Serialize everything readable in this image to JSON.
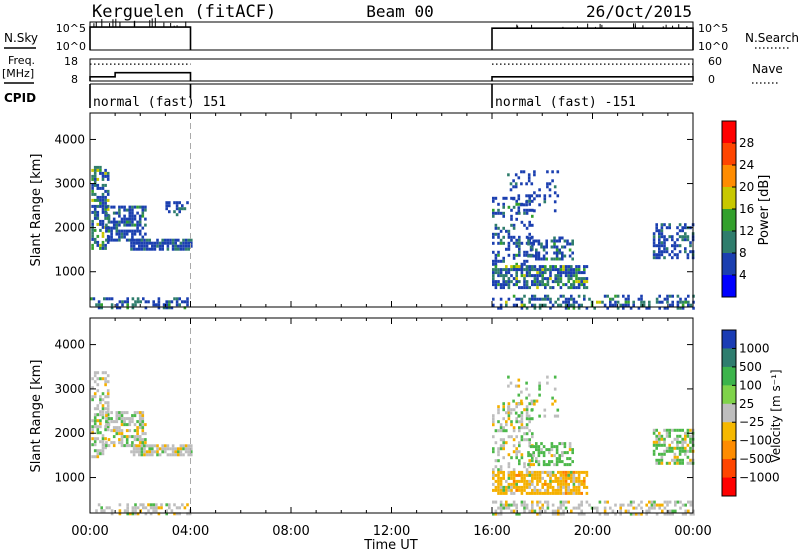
{
  "header": {
    "station": "Kerguelen (fitACF)",
    "beam": "Beam 00",
    "date": "26/Oct/2015"
  },
  "chart_data": [
    {
      "type": "line",
      "panel": "nsky-nsearch",
      "left_label": "N.Sky",
      "right_label": "N.Search",
      "left_ticks": [
        "10^5",
        "10^0"
      ],
      "right_ticks": [
        "10^5",
        "10^0"
      ],
      "series": [
        {
          "segments": [
            {
              "x_hours": [
                0.0,
                4.0
              ],
              "level": 0.82
            },
            {
              "x_hours": [
                16.0,
                24.0
              ],
              "level": 0.78
            }
          ]
        }
      ]
    },
    {
      "type": "line",
      "panel": "freq-nave",
      "left_label": "Freq.",
      "left_unit": "[MHz]",
      "right_label": "Nave",
      "left_ticks": [
        18,
        8
      ],
      "right_ticks": [
        60,
        0
      ],
      "series": [
        {
          "points": [
            [
              0.0,
              9.9
            ],
            [
              1.0,
              9.9
            ],
            [
              1.0,
              11.8
            ],
            [
              4.0,
              11.8
            ]
          ]
        },
        {
          "points": [
            [
              16.0,
              9.9
            ],
            [
              24.0,
              9.9
            ]
          ]
        }
      ],
      "nave_segments": [
        [
          0.0,
          4.0,
          46
        ],
        [
          16.0,
          24.0,
          46
        ]
      ]
    },
    {
      "type": "table",
      "panel": "cpid",
      "label": "CPID",
      "entries": [
        {
          "start_hour": 0.0,
          "end_hour": 4.0,
          "text": "normal (fast) 151"
        },
        {
          "start_hour": 16.0,
          "end_hour": 24.0,
          "text": "normal (fast) -151"
        }
      ]
    },
    {
      "type": "heatmap",
      "panel": "power",
      "ylabel": "Slant Range [km]",
      "xlabel": "",
      "x_ticks": [
        "00:00",
        "04:00",
        "08:00",
        "12:00",
        "16:00",
        "20:00",
        "00:00"
      ],
      "y_ticks": [
        1000,
        2000,
        3000,
        4000
      ],
      "ylim": [
        200,
        4600
      ],
      "xlim_hours": [
        0,
        24
      ],
      "colorbar": {
        "label": "Power [dB]",
        "ticks": [
          4,
          8,
          12,
          16,
          20,
          24,
          28
        ],
        "range": [
          0,
          32
        ],
        "colors": [
          "#0000ff",
          "#1b3fb0",
          "#2f7d6c",
          "#33a02c",
          "#c8c800",
          "#ff8c00",
          "#ff4500",
          "#ff0000"
        ]
      },
      "blobs": [
        {
          "t": [
            0.05,
            0.7
          ],
          "r": [
            1500,
            3400
          ],
          "density": 0.55,
          "mix": [
            0.55,
            0.3,
            0.1,
            0.05
          ]
        },
        {
          "t": [
            0.6,
            2.2
          ],
          "r": [
            1700,
            2500
          ],
          "density": 0.6,
          "mix": [
            0.7,
            0.25,
            0.05,
            0
          ]
        },
        {
          "t": [
            1.6,
            4.0
          ],
          "r": [
            1500,
            1750
          ],
          "density": 0.85,
          "mix": [
            0.8,
            0.2,
            0,
            0
          ]
        },
        {
          "t": [
            3.0,
            4.0
          ],
          "r": [
            2300,
            2600
          ],
          "density": 0.3,
          "mix": [
            0.7,
            0.3,
            0,
            0
          ]
        },
        {
          "t": [
            16.0,
            17.6
          ],
          "r": [
            1100,
            2700
          ],
          "density": 0.35,
          "mix": [
            0.75,
            0.2,
            0.05,
            0
          ]
        },
        {
          "t": [
            16.0,
            19.8
          ],
          "r": [
            650,
            1150
          ],
          "density": 0.75,
          "mix": [
            0.5,
            0.35,
            0.1,
            0.05
          ]
        },
        {
          "t": [
            17.4,
            19.2
          ],
          "r": [
            1300,
            1800
          ],
          "density": 0.55,
          "mix": [
            0.6,
            0.3,
            0.1,
            0
          ]
        },
        {
          "t": [
            16.6,
            18.6
          ],
          "r": [
            2400,
            3300
          ],
          "density": 0.18,
          "mix": [
            0.85,
            0.15,
            0,
            0
          ]
        },
        {
          "t": [
            22.4,
            24.0
          ],
          "r": [
            1300,
            2100
          ],
          "density": 0.55,
          "mix": [
            0.75,
            0.25,
            0,
            0
          ]
        },
        {
          "t": [
            0.0,
            4.0
          ],
          "r": [
            200,
            420
          ],
          "density": 0.35,
          "mix": [
            0.6,
            0.3,
            0.1,
            0
          ]
        },
        {
          "t": [
            16.0,
            24.0
          ],
          "r": [
            200,
            480
          ],
          "density": 0.4,
          "mix": [
            0.55,
            0.3,
            0.1,
            0.05
          ]
        }
      ]
    },
    {
      "type": "heatmap",
      "panel": "velocity",
      "ylabel": "Slant Range [km]",
      "xlabel": "Time UT",
      "x_ticks": [
        "00:00",
        "04:00",
        "08:00",
        "12:00",
        "16:00",
        "20:00",
        "00:00"
      ],
      "y_ticks": [
        1000,
        2000,
        3000,
        4000
      ],
      "ylim": [
        200,
        4600
      ],
      "xlim_hours": [
        0,
        24
      ],
      "colorbar": {
        "label": "Velocity [m s⁻¹]",
        "ticks": [
          "1000",
          "500",
          "100",
          "25",
          "−25",
          "−100",
          "−500",
          "−1000"
        ],
        "colors": [
          "#1a3cb4",
          "#2e7d6e",
          "#3cb44b",
          "#7fd34a",
          "#bebebe",
          "#f5b800",
          "#ff8c00",
          "#ff4500",
          "#ff0000"
        ]
      },
      "blobs": [
        {
          "t": [
            0.05,
            0.7
          ],
          "r": [
            1500,
            3400
          ],
          "density": 0.55,
          "mix": [
            0.6,
            0.25,
            0.15,
            0
          ]
        },
        {
          "t": [
            0.6,
            2.2
          ],
          "r": [
            1700,
            2500
          ],
          "density": 0.6,
          "mix": [
            0.55,
            0.25,
            0.2,
            0
          ]
        },
        {
          "t": [
            1.6,
            4.0
          ],
          "r": [
            1500,
            1750
          ],
          "density": 0.85,
          "mix": [
            0.75,
            0.1,
            0.15,
            0
          ]
        },
        {
          "t": [
            16.0,
            17.6
          ],
          "r": [
            1100,
            2700
          ],
          "density": 0.35,
          "mix": [
            0.5,
            0.35,
            0.15,
            0
          ]
        },
        {
          "t": [
            16.0,
            19.8
          ],
          "r": [
            650,
            1150
          ],
          "density": 0.75,
          "mix": [
            0.15,
            0.05,
            0.75,
            0.05
          ]
        },
        {
          "t": [
            17.4,
            19.2
          ],
          "r": [
            1300,
            1800
          ],
          "density": 0.55,
          "mix": [
            0.2,
            0.75,
            0.05,
            0
          ]
        },
        {
          "t": [
            16.6,
            18.6
          ],
          "r": [
            2400,
            3300
          ],
          "density": 0.18,
          "mix": [
            0.5,
            0.4,
            0.1,
            0
          ]
        },
        {
          "t": [
            22.4,
            24.0
          ],
          "r": [
            1300,
            2100
          ],
          "density": 0.55,
          "mix": [
            0.3,
            0.55,
            0.15,
            0
          ]
        },
        {
          "t": [
            0.0,
            4.0
          ],
          "r": [
            200,
            420
          ],
          "density": 0.35,
          "mix": [
            0.7,
            0.15,
            0.15,
            0
          ]
        },
        {
          "t": [
            16.0,
            24.0
          ],
          "r": [
            200,
            480
          ],
          "density": 0.4,
          "mix": [
            0.7,
            0.1,
            0.2,
            0
          ]
        }
      ]
    }
  ],
  "colors": {
    "power_ink": [
      "#1b3fb0",
      "#2f7d6c",
      "#33a02c",
      "#c8c800"
    ],
    "velocity_ink": [
      "#bebebe",
      "#4cb84a",
      "#f5b000",
      "#ff7f00"
    ]
  }
}
